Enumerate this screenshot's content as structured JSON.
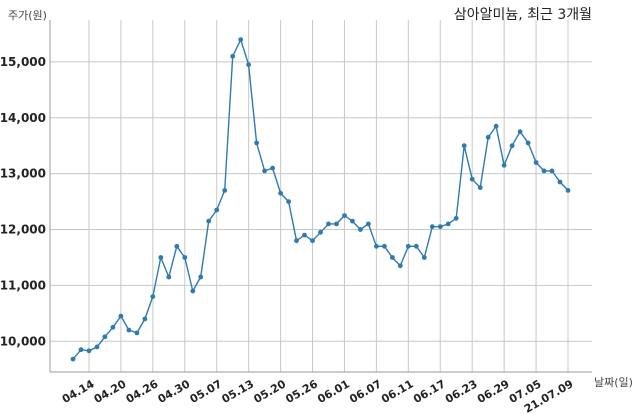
{
  "chart_data": {
    "type": "line",
    "title": "삼아알미늄, 최근 3개월",
    "ylabel": "주가(원)",
    "xlabel": "날짜(일)",
    "ylim": [
      9450,
      15750
    ],
    "yticks": [
      10000,
      11000,
      12000,
      13000,
      14000,
      15000
    ],
    "ytick_labels": [
      "10,000",
      "11,000",
      "12,000",
      "13,000",
      "14,000",
      "15,000"
    ],
    "grid": true,
    "color": "#2f7ab0",
    "xticks": [
      {
        "index": 2,
        "label": "04.14"
      },
      {
        "index": 6,
        "label": "04.20"
      },
      {
        "index": 10,
        "label": "04.26"
      },
      {
        "index": 14,
        "label": "04.30"
      },
      {
        "index": 18,
        "label": "05.07"
      },
      {
        "index": 22,
        "label": "05.13"
      },
      {
        "index": 26,
        "label": "05.20"
      },
      {
        "index": 30,
        "label": "05.26"
      },
      {
        "index": 34,
        "label": "06.01"
      },
      {
        "index": 38,
        "label": "06.07"
      },
      {
        "index": 42,
        "label": "06.11"
      },
      {
        "index": 46,
        "label": "06.17"
      },
      {
        "index": 50,
        "label": "06.23"
      },
      {
        "index": 54,
        "label": "06.29"
      },
      {
        "index": 58,
        "label": "07.05"
      },
      {
        "index": 62,
        "label": "21.07.09"
      }
    ],
    "values": [
      9680,
      9850,
      9830,
      9900,
      10080,
      10250,
      10450,
      10200,
      10150,
      10400,
      10800,
      11500,
      11150,
      11700,
      11500,
      10900,
      11150,
      12150,
      12350,
      12700,
      15100,
      15400,
      14950,
      13550,
      13050,
      13100,
      12650,
      12500,
      11800,
      11900,
      11800,
      11950,
      12100,
      12100,
      12250,
      12150,
      12000,
      12100,
      11700,
      11700,
      11500,
      11350,
      11700,
      11700,
      11500,
      12050,
      12050,
      12100,
      12200,
      13500,
      12900,
      12750,
      13650,
      13850,
      13150,
      13500,
      13750,
      13550,
      13200,
      13050,
      13050,
      12850,
      12700
    ]
  }
}
